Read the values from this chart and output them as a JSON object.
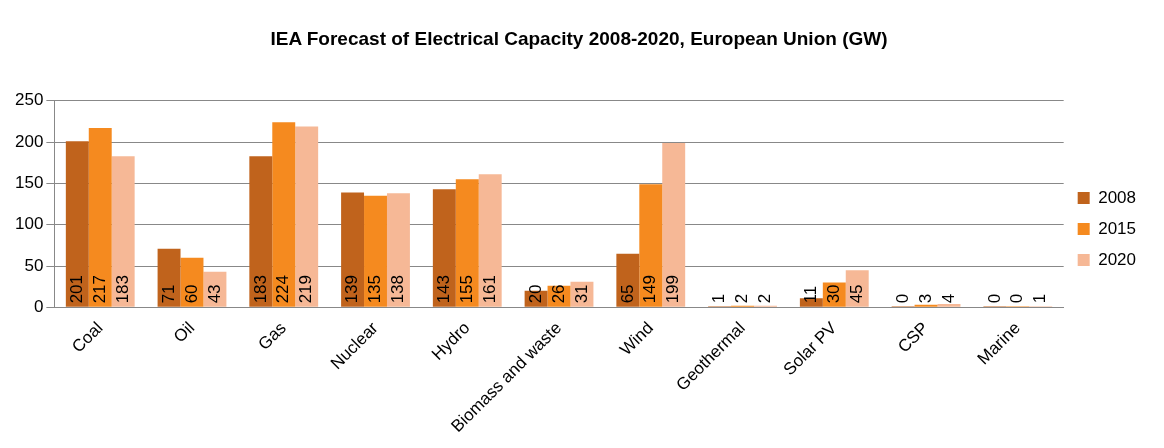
{
  "chart_data": {
    "type": "bar",
    "title": "IEA Forecast of Electrical Capacity 2008-2020, European Union (GW)",
    "categories": [
      "Coal",
      "Oil",
      "Gas",
      "Nuclear",
      "Hydro",
      "Biomass and waste",
      "Wind",
      "Geothermal",
      "Solar PV",
      "CSP",
      "Marine"
    ],
    "series": [
      {
        "name": "2008",
        "color": "#c0631c",
        "values": [
          201,
          71,
          183,
          139,
          143,
          20,
          65,
          1,
          11,
          0,
          0
        ]
      },
      {
        "name": "2015",
        "color": "#f58a1f",
        "values": [
          217,
          60,
          224,
          135,
          155,
          26,
          149,
          2,
          30,
          3,
          0
        ]
      },
      {
        "name": "2020",
        "color": "#f6b896",
        "values": [
          183,
          43,
          219,
          138,
          161,
          31,
          199,
          2,
          45,
          4,
          1
        ]
      }
    ],
    "ylim": [
      0,
      250
    ],
    "yticks": [
      0,
      50,
      100,
      150,
      200,
      250
    ],
    "grid": "y",
    "legend": "right",
    "data_labels": true
  }
}
